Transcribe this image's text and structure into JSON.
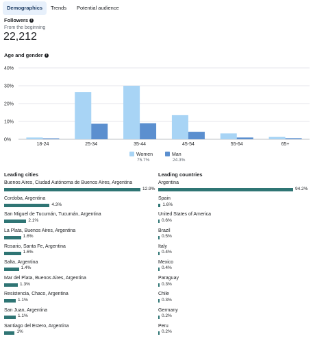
{
  "tabs": [
    {
      "label": "Demographics",
      "active": true
    },
    {
      "label": "Trends",
      "active": false
    },
    {
      "label": "Potential audience",
      "active": false
    }
  ],
  "followers": {
    "title": "Followers",
    "subtitle": "From the beginning",
    "count": "22,212"
  },
  "age_gender": {
    "title": "Age and gender",
    "legend": [
      {
        "label": "Women",
        "percent": "75.7%",
        "color": "#a8d4f5"
      },
      {
        "label": "Man",
        "percent": "24.3%",
        "color": "#5b8fcf"
      }
    ]
  },
  "chart_data": {
    "type": "bar",
    "categories": [
      "18-24",
      "25-34",
      "35-44",
      "45-54",
      "55-64",
      "65+"
    ],
    "series": [
      {
        "name": "Women",
        "values": [
          1.0,
          26.5,
          30.0,
          13.5,
          3.3,
          1.3
        ],
        "color": "#a8d4f5"
      },
      {
        "name": "Man",
        "values": [
          0.5,
          8.7,
          9.0,
          4.2,
          1.0,
          0.6
        ],
        "color": "#5b8fcf"
      }
    ],
    "yticks": [
      "0%",
      "10%",
      "20%",
      "30%",
      "40%"
    ],
    "ylim": [
      0,
      40
    ],
    "grid": true,
    "legend_position": "bottom"
  },
  "leading_cities": {
    "title": "Leading cities",
    "items": [
      {
        "name": "Buenos Aires, Ciudad Autónoma de Buenos Aires, Argentina",
        "value": "12.9%",
        "fraction": 0.129
      },
      {
        "name": "Cordoba, Argentina",
        "value": "4.3%",
        "fraction": 0.043
      },
      {
        "name": "San Miguel de Tucumán, Tucumán, Argentina",
        "value": "2.1%",
        "fraction": 0.021
      },
      {
        "name": "La Plata, Buenos Aires, Argentina",
        "value": "1.6%",
        "fraction": 0.016
      },
      {
        "name": "Rosario, Santa Fe, Argentina",
        "value": "1.6%",
        "fraction": 0.016
      },
      {
        "name": "Salta, Argentina",
        "value": "1.4%",
        "fraction": 0.014
      },
      {
        "name": "Mar del Plata, Buenos Aires, Argentina",
        "value": "1.3%",
        "fraction": 0.013
      },
      {
        "name": "Resistencia, Chaco, Argentina",
        "value": "1.1%",
        "fraction": 0.011
      },
      {
        "name": "San Juan, Argentina",
        "value": "1.1%",
        "fraction": 0.011
      },
      {
        "name": "Santiago del Estero, Argentina",
        "value": "1%",
        "fraction": 0.01
      }
    ]
  },
  "leading_countries": {
    "title": "Leading countries",
    "items": [
      {
        "name": "Argentina",
        "value": "94.2%",
        "fraction": 0.942
      },
      {
        "name": "Spain",
        "value": "1.6%",
        "fraction": 0.016
      },
      {
        "name": "United States of America",
        "value": "0.6%",
        "fraction": 0.006
      },
      {
        "name": "Brazil",
        "value": "0.5%",
        "fraction": 0.005
      },
      {
        "name": "Italy",
        "value": "0.4%",
        "fraction": 0.004
      },
      {
        "name": "Mexico",
        "value": "0.4%",
        "fraction": 0.004
      },
      {
        "name": "Paraguay",
        "value": "0.3%",
        "fraction": 0.003
      },
      {
        "name": "Chile",
        "value": "0.3%",
        "fraction": 0.003
      },
      {
        "name": "Germany",
        "value": "0.2%",
        "fraction": 0.002
      },
      {
        "name": "Peru",
        "value": "0.2%",
        "fraction": 0.002
      }
    ]
  }
}
